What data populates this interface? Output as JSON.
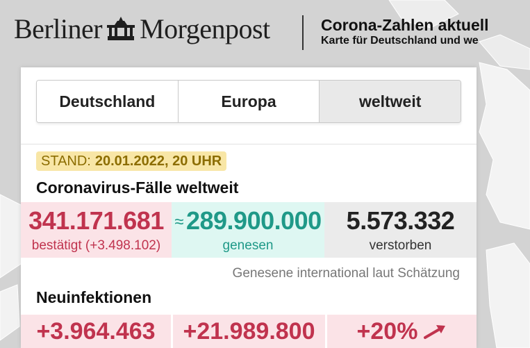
{
  "header": {
    "logo_left": "Berliner",
    "logo_right": "Morgenpost",
    "title": "Corona-Zahlen aktuell",
    "subtitle": "Karte für Deutschland und we"
  },
  "tabs": [
    {
      "label": "Deutschland",
      "active": false
    },
    {
      "label": "Europa",
      "active": false
    },
    {
      "label": "weltweit",
      "active": true
    }
  ],
  "stand": {
    "label": "STAND:",
    "value": "20.01.2022, 20 UHR"
  },
  "cases": {
    "title": "Coronavirus-Fälle weltweit",
    "confirmed": {
      "value": "341.171.681",
      "label": "bestätigt (+3.498.102)"
    },
    "recovered": {
      "prefix": "≈",
      "value": "289.900.000",
      "label": "genesen"
    },
    "deaths": {
      "value": "5.573.332",
      "label": "verstorben"
    },
    "note": "Genesene international laut Schätzung"
  },
  "new_infections": {
    "title": "Neuinfektionen",
    "values": [
      "+3.964.463",
      "+21.989.800",
      "+20%"
    ],
    "trend_icon": "arrow-up-right-icon"
  },
  "colors": {
    "confirmed": "#c0334e",
    "confirmed_bg": "#fbe3e7",
    "recovered": "#1f9988",
    "recovered_bg": "#def7f2",
    "deaths_bg": "#ebebeb",
    "stand_bg": "#f8e6a6",
    "stand_text": "#8c6d00"
  }
}
